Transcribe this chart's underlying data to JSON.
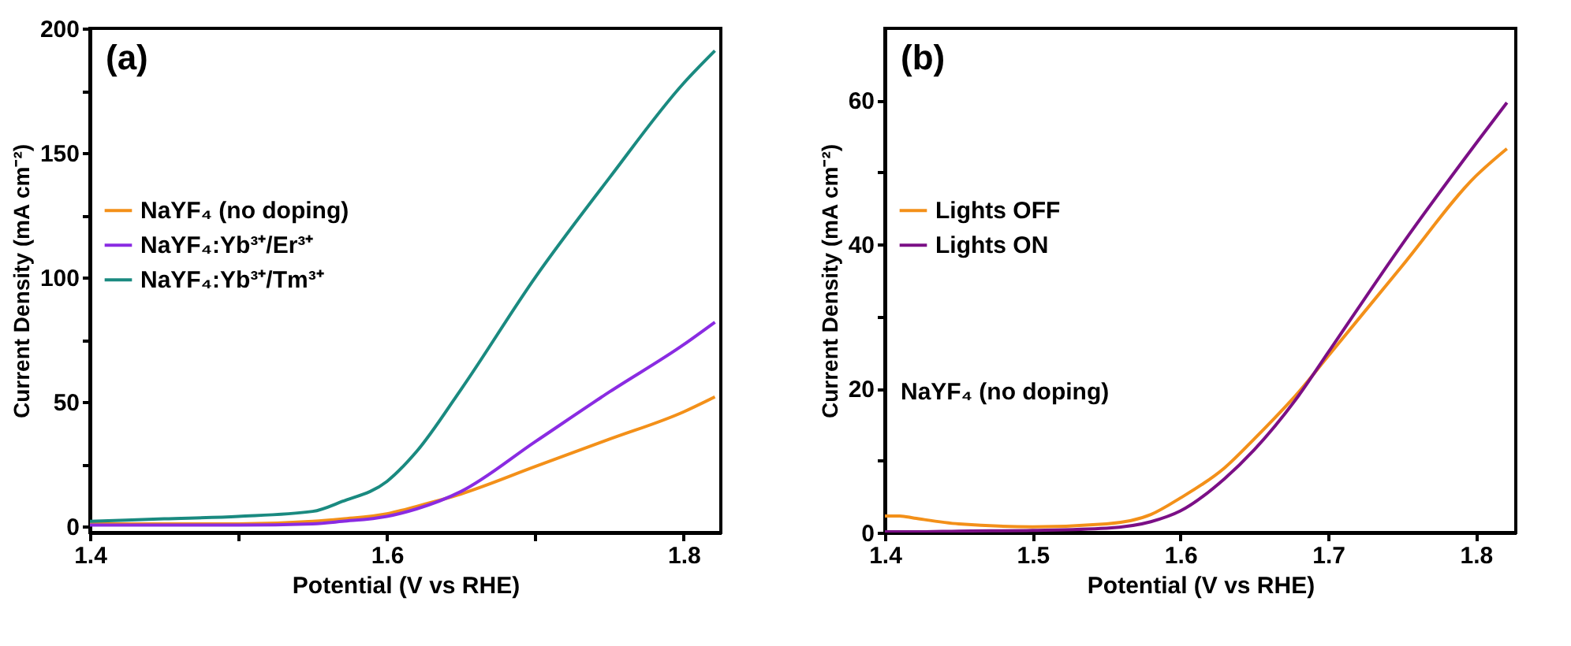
{
  "chart_data": [
    {
      "type": "line",
      "xlabel": "Potential (V vs RHE)",
      "ylabel": "Current Density (mA cm⁻²)",
      "annotations": [
        "(a)"
      ],
      "xlim": [
        1.4,
        1.825
      ],
      "xticks": [
        1.4,
        {
          "value": 1.5,
          "label": null
        },
        1.6,
        {
          "value": 1.7,
          "label": null
        },
        1.8
      ],
      "ylim": [
        -2.5,
        200
      ],
      "yticks": [
        0,
        {
          "value": 25,
          "label": null
        },
        50,
        {
          "value": 75,
          "label": null
        },
        100,
        {
          "value": 125,
          "label": null
        },
        150,
        {
          "value": 175,
          "label": null
        },
        200
      ],
      "grid": false,
      "legend": "left",
      "line_style": "solid",
      "marker": "none",
      "x": [
        1.4,
        1.45,
        1.5,
        1.55,
        1.57,
        1.6,
        1.62,
        1.65,
        1.7,
        1.75,
        1.8,
        1.821
      ],
      "series": [
        {
          "name": "NaYF₄ (no doping)",
          "color": "#f39019",
          "values": [
            1,
            1,
            1,
            2,
            3,
            5,
            8,
            13,
            24,
            35,
            46,
            52
          ]
        },
        {
          "name": "NaYF₄:Yb³⁺/Er³⁺",
          "color": "#8a2be2",
          "values": [
            0.5,
            0.5,
            0.5,
            1,
            2,
            4,
            7,
            14,
            34,
            54,
            73,
            82
          ]
        },
        {
          "name": "NaYF₄:Yb³⁺/Tm³⁺",
          "color": "#1a8a80",
          "values": [
            2,
            3,
            4,
            6,
            10,
            18,
            30,
            55,
            100,
            140,
            178,
            191
          ]
        }
      ]
    },
    {
      "type": "line",
      "xlabel": "Potential (V vs RHE)",
      "ylabel": "Current Density (mA cm⁻²)",
      "annotations": [
        "(b)",
        "NaYF₄ (no doping)"
      ],
      "xlim": [
        1.4,
        1.827
      ],
      "xticks": [
        1.4,
        1.5,
        1.6,
        1.7,
        1.8
      ],
      "ylim": [
        0,
        70
      ],
      "yticks": [
        0,
        {
          "value": 10,
          "label": null
        },
        20,
        {
          "value": 30,
          "label": null
        },
        40,
        {
          "value": 50,
          "label": null
        },
        60
      ],
      "grid": false,
      "legend": "left",
      "line_style": "solid",
      "marker": "none",
      "x": [
        1.4,
        1.41,
        1.42,
        1.45,
        1.5,
        1.55,
        1.58,
        1.6,
        1.63,
        1.65,
        1.68,
        1.7,
        1.75,
        1.8,
        1.821
      ],
      "series": [
        {
          "name": "Lights OFF",
          "color": "#f39019",
          "values": [
            2.3,
            2.3,
            2.0,
            1.2,
            0.8,
            1.2,
            2.5,
            4.8,
            9,
            13,
            19.5,
            24.5,
            37,
            49.5,
            53.3
          ]
        },
        {
          "name": "Lights ON",
          "color": "#7b0f86",
          "values": [
            0.1,
            0.1,
            0.1,
            0.2,
            0.3,
            0.6,
            1.5,
            3,
            7.5,
            11.5,
            19,
            25,
            40,
            54,
            59.7
          ]
        }
      ]
    }
  ]
}
